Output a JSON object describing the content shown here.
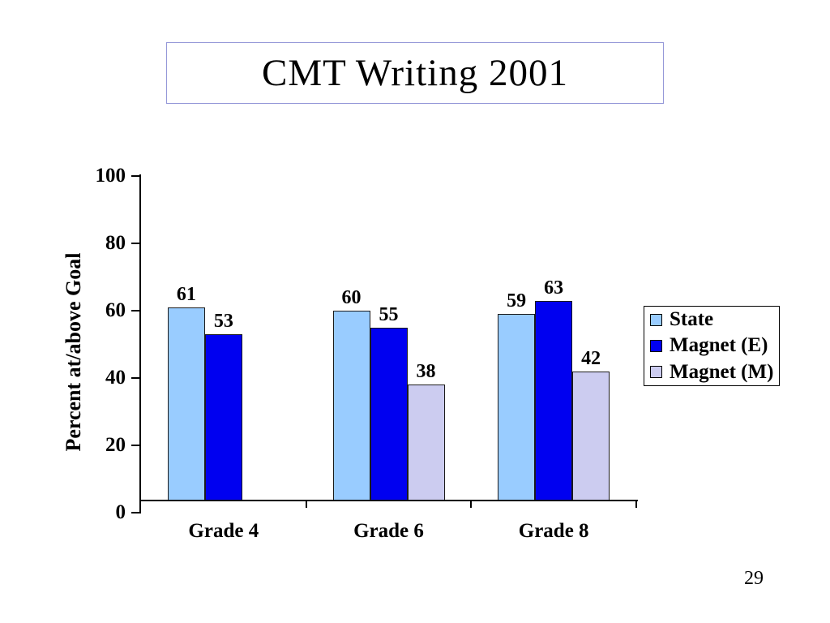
{
  "slide": {
    "title": "CMT Writing 2001",
    "page_number": "29"
  },
  "chart_data": {
    "type": "bar",
    "title": "CMT Writing 2001",
    "categories": [
      "Grade 4",
      "Grade 6",
      "Grade 8"
    ],
    "series": [
      {
        "name": "State",
        "color": "#99CCFF",
        "values": [
          61,
          60,
          59
        ]
      },
      {
        "name": "Magnet (E)",
        "color": "#0000F0",
        "values": [
          53,
          55,
          63
        ]
      },
      {
        "name": "Magnet (M)",
        "color": "#CCCCF0",
        "values": [
          null,
          38,
          42
        ]
      }
    ],
    "ylabel": "Percent at/above Goal",
    "ylim": [
      0,
      100
    ],
    "yticks": [
      0,
      20,
      40,
      60,
      80,
      100
    ],
    "grid": false,
    "legend_position": "right",
    "data_labels": true
  }
}
